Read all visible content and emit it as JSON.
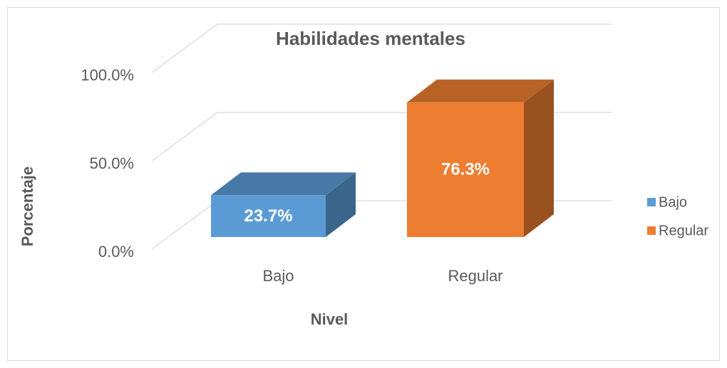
{
  "chart_data": {
    "type": "bar3d",
    "title": "Habilidades mentales",
    "x_label": "Nivel",
    "y_label": "Porcentaje",
    "categories": [
      "Bajo",
      "Regular"
    ],
    "values": [
      23.7,
      76.3
    ],
    "value_labels": [
      "23.7%",
      "76.3%"
    ],
    "colors": [
      "#5b9bd5",
      "#ed7d31"
    ],
    "ylim": [
      0,
      100
    ],
    "yticks": [
      {
        "value": 0,
        "label": "0.0%"
      },
      {
        "value": 50,
        "label": "50.0%"
      },
      {
        "value": 100,
        "label": "100.0%"
      }
    ],
    "grid": true,
    "legend": "right"
  }
}
